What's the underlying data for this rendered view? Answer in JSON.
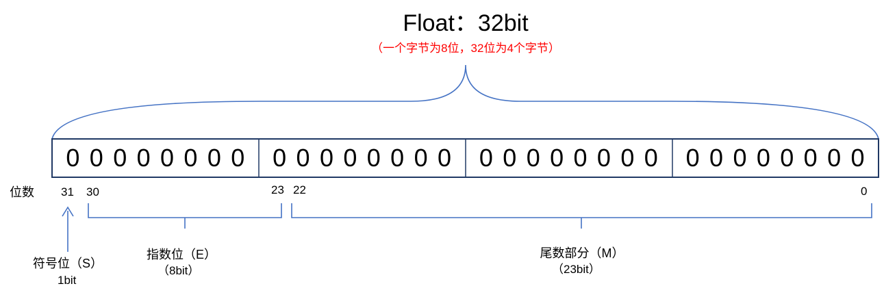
{
  "title": "Float：32bit",
  "subtitle": "（一个字节为8位，32位为4个字节）",
  "colors": {
    "line": "#4472C4",
    "subtitle": "#FF0000",
    "text": "#000000"
  },
  "bytes": [
    [
      "0",
      "0",
      "0",
      "0",
      "0",
      "0",
      "0",
      "0"
    ],
    [
      "0",
      "0",
      "0",
      "0",
      "0",
      "0",
      "0",
      "0"
    ],
    [
      "0",
      "0",
      "0",
      "0",
      "0",
      "0",
      "0",
      "0"
    ],
    [
      "0",
      "0",
      "0",
      "0",
      "0",
      "0",
      "0",
      "0"
    ]
  ],
  "row_label": "位数",
  "positions": {
    "p31": "31",
    "p30": "30",
    "p23": "23",
    "p22": "22",
    "p0": "0"
  },
  "sign": {
    "label": "符号位（S）",
    "size": "1bit"
  },
  "exponent": {
    "label": "指数位（E）",
    "size": "（8bit）"
  },
  "mantissa": {
    "label": "尾数部分（M）",
    "size": "（23bit）"
  }
}
